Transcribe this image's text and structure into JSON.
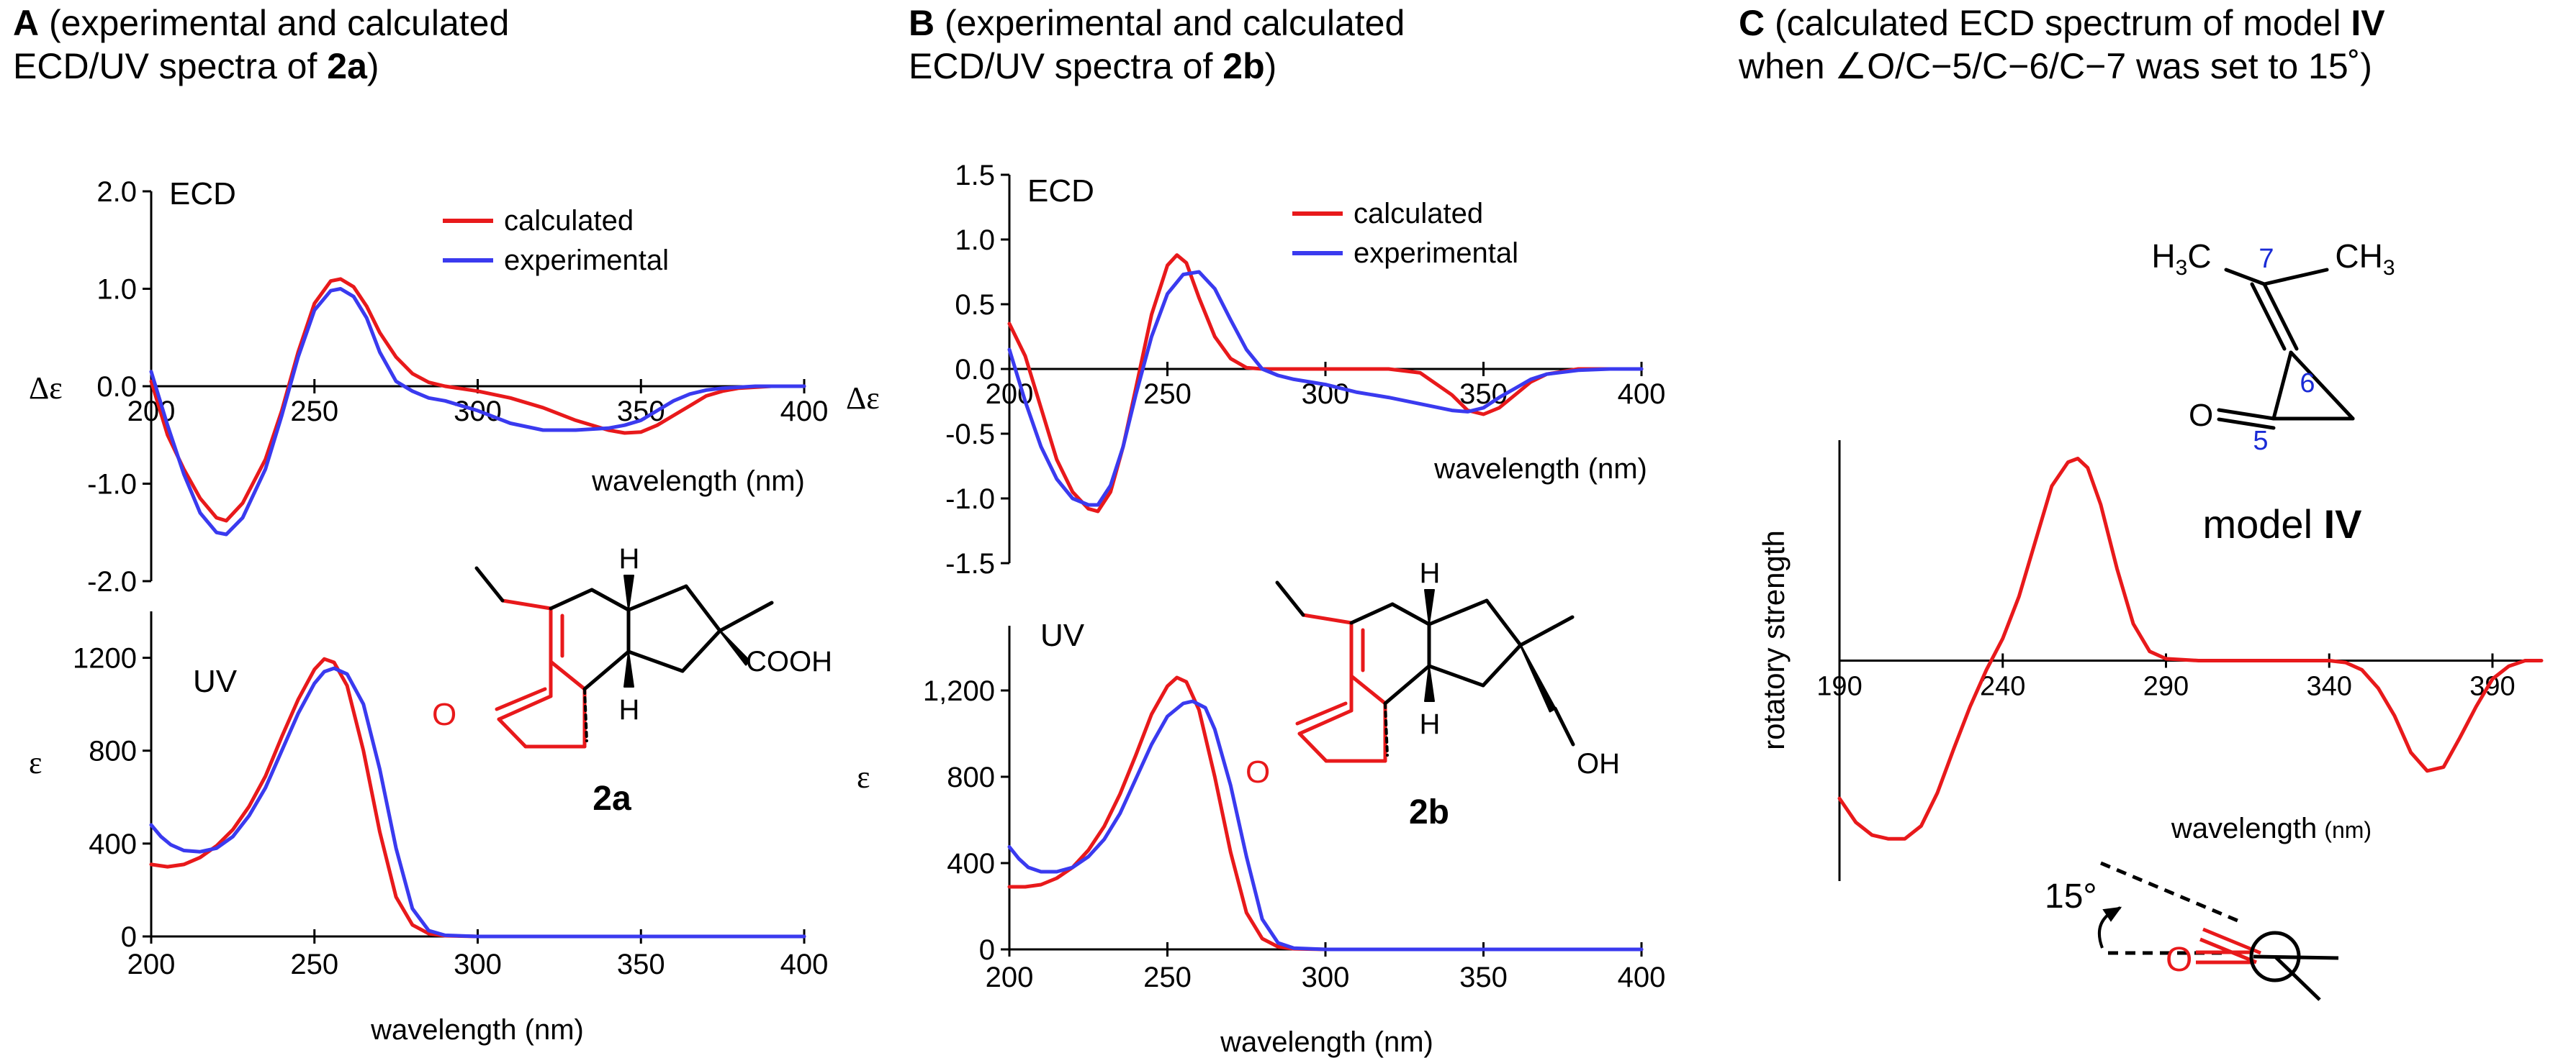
{
  "panels": {
    "A": {
      "letter": "A",
      "title_line1": "(experimental and calculated",
      "title_line2_pre": "ECD/UV spectra of ",
      "title_line2_bold": "2a",
      "title_line2_post": ")"
    },
    "B": {
      "letter": "B",
      "title_line1": "(experimental and calculated",
      "title_line2_pre": "ECD/UV spectra of ",
      "title_line2_bold": "2b",
      "title_line2_post": ")"
    },
    "C": {
      "letter": "C",
      "title_line1": "(calculated ECD spectrum of model ",
      "title_line1_bold": "IV",
      "title_line2": "when ∠O/C−5/C−6/C−7 was set to 15˚)"
    }
  },
  "colors": {
    "calculated": "#e8191b",
    "experimental": "#3a3aef",
    "axis": "#000000",
    "molecule_red": "#e8191b",
    "atom_label_blue": "#1a2bd6"
  },
  "molecules": {
    "2a": {
      "label": "2a",
      "H_top": "H",
      "H_bottom": "H",
      "carbonyl_O": "O",
      "acid": "COOH"
    },
    "2b": {
      "label": "2b",
      "H_top": "H",
      "H_bottom": "H",
      "carbonyl_O": "O",
      "alcohol": "OH"
    },
    "modelIV": {
      "label_pre": "model ",
      "label_bold": "IV",
      "methyl_left": "H3C",
      "methyl_right": "CH3",
      "carbonyl_O": "O",
      "atom_numbers": [
        "7",
        "6",
        "5"
      ]
    },
    "newman": {
      "angle_label": "15°",
      "O": "O"
    }
  },
  "chart_data": [
    {
      "id": "A-ECD",
      "type": "line",
      "title": "ECD",
      "xlabel": "wavelength (nm)",
      "ylabel": "Δε",
      "xlim": [
        200,
        400
      ],
      "ylim": [
        -2.0,
        2.0
      ],
      "xticks": [
        "200",
        "250",
        "300",
        "350",
        "400"
      ],
      "yticks": [
        "2.0",
        "1.0",
        "0.0",
        "-1.0",
        "-2.0"
      ],
      "legend": [
        "calculated",
        "experimental"
      ],
      "legend_position": "top-right",
      "series": [
        {
          "name": "calculated",
          "x": [
            200,
            205,
            210,
            215,
            220,
            223,
            228,
            235,
            240,
            245,
            250,
            255,
            258,
            262,
            266,
            270,
            275,
            280,
            285,
            290,
            300,
            310,
            320,
            330,
            340,
            345,
            350,
            355,
            360,
            365,
            370,
            375,
            380,
            385,
            390,
            395,
            400
          ],
          "y": [
            0.05,
            -0.5,
            -0.85,
            -1.15,
            -1.35,
            -1.38,
            -1.2,
            -0.75,
            -0.25,
            0.35,
            0.85,
            1.08,
            1.1,
            1.02,
            0.82,
            0.55,
            0.3,
            0.13,
            0.04,
            0,
            -0.05,
            -0.12,
            -0.22,
            -0.35,
            -0.45,
            -0.48,
            -0.47,
            -0.4,
            -0.3,
            -0.2,
            -0.1,
            -0.05,
            -0.02,
            -0.01,
            0,
            0,
            0
          ]
        },
        {
          "name": "experimental",
          "x": [
            200,
            205,
            210,
            215,
            220,
            223,
            228,
            235,
            240,
            245,
            250,
            255,
            258,
            262,
            266,
            270,
            275,
            280,
            285,
            290,
            300,
            310,
            320,
            330,
            340,
            345,
            350,
            355,
            360,
            365,
            370,
            375,
            380,
            385,
            390,
            395,
            400
          ],
          "y": [
            0.15,
            -0.4,
            -0.9,
            -1.3,
            -1.5,
            -1.52,
            -1.35,
            -0.85,
            -0.3,
            0.3,
            0.78,
            0.98,
            1.0,
            0.92,
            0.7,
            0.35,
            0.05,
            -0.05,
            -0.12,
            -0.15,
            -0.25,
            -0.38,
            -0.45,
            -0.45,
            -0.43,
            -0.4,
            -0.35,
            -0.25,
            -0.15,
            -0.08,
            -0.04,
            -0.02,
            -0.01,
            0,
            0,
            0,
            0
          ]
        }
      ]
    },
    {
      "id": "A-UV",
      "type": "line",
      "title": "UV",
      "xlabel": "wavelength (nm)",
      "ylabel": "ε",
      "xlim": [
        200,
        400
      ],
      "ylim": [
        0,
        1400
      ],
      "xticks": [
        "200",
        "250",
        "300",
        "350",
        "400"
      ],
      "yticks": [
        "0",
        "400",
        "800",
        "1200"
      ],
      "series": [
        {
          "name": "calculated",
          "x": [
            200,
            205,
            210,
            215,
            220,
            225,
            230,
            235,
            240,
            245,
            250,
            253,
            256,
            260,
            265,
            270,
            275,
            280,
            285,
            290,
            300,
            350,
            400
          ],
          "y": [
            310,
            300,
            310,
            340,
            390,
            460,
            560,
            690,
            860,
            1020,
            1150,
            1195,
            1180,
            1080,
            800,
            450,
            170,
            50,
            12,
            3,
            0,
            0,
            0
          ]
        },
        {
          "name": "experimental",
          "x": [
            200,
            203,
            206,
            210,
            215,
            220,
            225,
            230,
            235,
            240,
            245,
            250,
            253,
            256,
            260,
            265,
            270,
            275,
            280,
            285,
            290,
            300,
            350,
            400
          ],
          "y": [
            480,
            430,
            395,
            370,
            365,
            380,
            430,
            520,
            640,
            800,
            960,
            1090,
            1140,
            1155,
            1130,
            1000,
            720,
            380,
            120,
            25,
            5,
            0,
            0,
            0
          ]
        }
      ]
    },
    {
      "id": "B-ECD",
      "type": "line",
      "title": "ECD",
      "xlabel": "wavelength (nm)",
      "ylabel": "Δε",
      "xlim": [
        200,
        400
      ],
      "ylim": [
        -1.5,
        1.5
      ],
      "xticks": [
        "200",
        "250",
        "300",
        "350",
        "400"
      ],
      "yticks": [
        "1.5",
        "1.0",
        "0.5",
        "0.0",
        "-0.5",
        "-1.0",
        "-1.5"
      ],
      "legend": [
        "calculated",
        "experimental"
      ],
      "legend_position": "top-right",
      "series": [
        {
          "name": "calculated",
          "x": [
            200,
            205,
            210,
            215,
            220,
            225,
            228,
            232,
            236,
            240,
            245,
            250,
            253,
            256,
            260,
            265,
            270,
            275,
            280,
            285,
            290,
            300,
            310,
            320,
            330,
            340,
            345,
            350,
            355,
            360,
            365,
            370,
            380,
            390,
            400
          ],
          "y": [
            0.35,
            0.1,
            -0.3,
            -0.7,
            -0.95,
            -1.08,
            -1.1,
            -0.95,
            -0.6,
            -0.15,
            0.42,
            0.8,
            0.88,
            0.82,
            0.55,
            0.25,
            0.08,
            0.01,
            0,
            0,
            0,
            0,
            0,
            0,
            -0.03,
            -0.2,
            -0.32,
            -0.35,
            -0.3,
            -0.2,
            -0.1,
            -0.04,
            0,
            0,
            0
          ]
        },
        {
          "name": "experimental",
          "x": [
            200,
            205,
            210,
            215,
            220,
            225,
            228,
            232,
            236,
            240,
            245,
            250,
            255,
            260,
            265,
            270,
            275,
            280,
            285,
            290,
            300,
            310,
            320,
            330,
            340,
            345,
            350,
            355,
            360,
            365,
            370,
            380,
            390,
            400
          ],
          "y": [
            0.15,
            -0.25,
            -0.6,
            -0.85,
            -1.0,
            -1.05,
            -1.05,
            -0.9,
            -0.6,
            -0.2,
            0.25,
            0.58,
            0.73,
            0.75,
            0.62,
            0.38,
            0.15,
            0.0,
            -0.05,
            -0.08,
            -0.12,
            -0.18,
            -0.22,
            -0.27,
            -0.32,
            -0.33,
            -0.3,
            -0.22,
            -0.15,
            -0.08,
            -0.04,
            -0.01,
            0,
            0
          ]
        }
      ]
    },
    {
      "id": "B-UV",
      "type": "line",
      "title": "UV",
      "xlabel": "wavelength (nm)",
      "ylabel": "ε",
      "xlim": [
        200,
        400
      ],
      "ylim": [
        0,
        1500
      ],
      "xticks": [
        "200",
        "250",
        "300",
        "350",
        "400"
      ],
      "yticks": [
        "0",
        "400",
        "800",
        "1,200"
      ],
      "series": [
        {
          "name": "calculated",
          "x": [
            200,
            205,
            210,
            215,
            220,
            225,
            230,
            235,
            240,
            245,
            250,
            253,
            256,
            260,
            265,
            270,
            275,
            280,
            285,
            290,
            300,
            350,
            400
          ],
          "y": [
            290,
            290,
            300,
            330,
            380,
            460,
            570,
            720,
            900,
            1090,
            1220,
            1260,
            1240,
            1110,
            800,
            450,
            170,
            50,
            12,
            3,
            0,
            0,
            0
          ]
        },
        {
          "name": "experimental",
          "x": [
            200,
            203,
            206,
            210,
            215,
            220,
            225,
            230,
            235,
            240,
            245,
            250,
            255,
            258,
            262,
            265,
            270,
            275,
            280,
            285,
            290,
            300,
            350,
            400
          ],
          "y": [
            475,
            420,
            380,
            360,
            360,
            380,
            430,
            510,
            630,
            790,
            950,
            1080,
            1140,
            1150,
            1120,
            1020,
            760,
            430,
            140,
            30,
            6,
            0,
            0,
            0
          ]
        }
      ]
    },
    {
      "id": "C-ECD",
      "type": "line",
      "title": "",
      "xlabel": "wavelength",
      "xlabel_unit": "(nm)",
      "ylabel": "rotatory strength",
      "xlim": [
        190,
        405
      ],
      "ylim": [
        -1.2,
        1.2
      ],
      "xticks": [
        "190",
        "240",
        "290",
        "340",
        "390"
      ],
      "yticks": [],
      "series": [
        {
          "name": "calculated",
          "x": [
            190,
            195,
            200,
            205,
            210,
            215,
            220,
            225,
            230,
            235,
            240,
            245,
            250,
            255,
            260,
            263,
            266,
            270,
            275,
            280,
            285,
            290,
            300,
            310,
            320,
            330,
            340,
            345,
            350,
            355,
            360,
            365,
            370,
            375,
            380,
            385,
            390,
            395,
            400,
            405
          ],
          "y": [
            -0.75,
            -0.88,
            -0.95,
            -0.97,
            -0.97,
            -0.9,
            -0.72,
            -0.48,
            -0.25,
            -0.05,
            0.12,
            0.35,
            0.65,
            0.95,
            1.08,
            1.1,
            1.05,
            0.85,
            0.5,
            0.2,
            0.05,
            0.01,
            0,
            0,
            0,
            0,
            0,
            -0.01,
            -0.05,
            -0.15,
            -0.3,
            -0.5,
            -0.6,
            -0.58,
            -0.42,
            -0.25,
            -0.1,
            -0.03,
            0,
            0
          ]
        }
      ]
    }
  ]
}
